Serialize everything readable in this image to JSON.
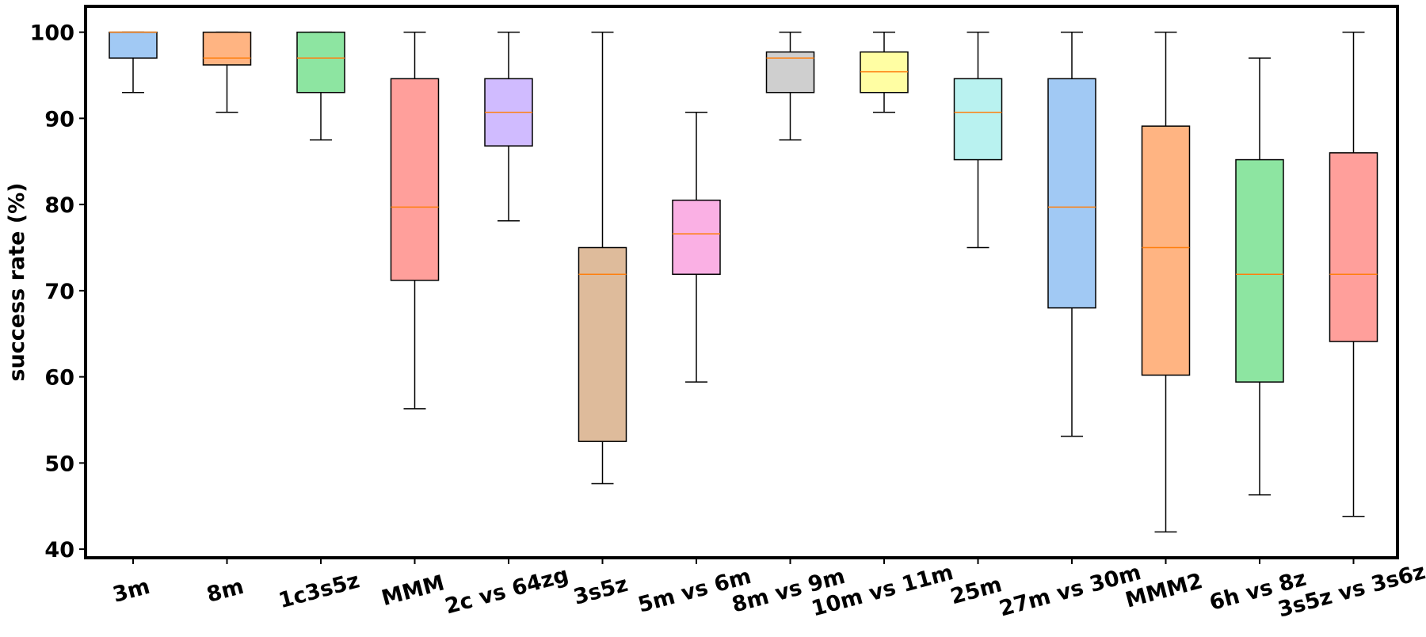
{
  "chart_data": {
    "type": "boxplot",
    "title": "",
    "xlabel": "",
    "ylabel": "success rate (%)",
    "ylim": [
      39,
      103
    ],
    "yticks": [
      40,
      50,
      60,
      70,
      80,
      90,
      100
    ],
    "grid": false,
    "categories": [
      "3m",
      "8m",
      "1c3s5z",
      "MMM",
      "2c vs 64zg",
      "3s5z",
      "5m vs 6m",
      "8m vs 9m",
      "10m vs 11m",
      "25m",
      "27m vs 30m",
      "MMM2",
      "6h vs 8z",
      "3s5z vs 3s6z"
    ],
    "series": [
      {
        "name": "3m",
        "whisker_low": 93.0,
        "q1": 97.0,
        "median": 100.0,
        "q3": 100.0,
        "whisker_high": 100.0,
        "color": "#a1c9f4"
      },
      {
        "name": "8m",
        "whisker_low": 90.7,
        "q1": 96.2,
        "median": 97.0,
        "q3": 100.0,
        "whisker_high": 100.0,
        "color": "#ffb482"
      },
      {
        "name": "1c3s5z",
        "whisker_low": 87.5,
        "q1": 93.0,
        "median": 97.0,
        "q3": 100.0,
        "whisker_high": 100.0,
        "color": "#8de5a1"
      },
      {
        "name": "MMM",
        "whisker_low": 56.3,
        "q1": 71.2,
        "median": 79.7,
        "q3": 94.6,
        "whisker_high": 100.0,
        "color": "#ff9f9b"
      },
      {
        "name": "2c vs 64zg",
        "whisker_low": 78.1,
        "q1": 86.8,
        "median": 90.7,
        "q3": 94.6,
        "whisker_high": 100.0,
        "color": "#d0bbff"
      },
      {
        "name": "3s5z",
        "whisker_low": 47.6,
        "q1": 52.5,
        "median": 71.9,
        "q3": 75.0,
        "whisker_high": 100.0,
        "color": "#debb9b"
      },
      {
        "name": "5m vs 6m",
        "whisker_low": 59.4,
        "q1": 71.9,
        "median": 76.6,
        "q3": 80.5,
        "whisker_high": 90.7,
        "color": "#fab0e4"
      },
      {
        "name": "8m vs 9m",
        "whisker_low": 87.5,
        "q1": 93.0,
        "median": 97.0,
        "q3": 97.7,
        "whisker_high": 100.0,
        "color": "#cfcfcf"
      },
      {
        "name": "10m vs 11m",
        "whisker_low": 90.7,
        "q1": 93.0,
        "median": 95.4,
        "q3": 97.7,
        "whisker_high": 100.0,
        "color": "#fffea3"
      },
      {
        "name": "25m",
        "whisker_low": 75.0,
        "q1": 85.2,
        "median": 90.7,
        "q3": 94.6,
        "whisker_high": 100.0,
        "color": "#b9f2f0"
      },
      {
        "name": "27m vs 30m",
        "whisker_low": 53.1,
        "q1": 68.0,
        "median": 79.7,
        "q3": 94.6,
        "whisker_high": 100.0,
        "color": "#a1c9f4"
      },
      {
        "name": "MMM2",
        "whisker_low": 42.0,
        "q1": 60.2,
        "median": 75.0,
        "q3": 89.1,
        "whisker_high": 100.0,
        "color": "#ffb482"
      },
      {
        "name": "6h vs 8z",
        "whisker_low": 46.3,
        "q1": 59.4,
        "median": 71.9,
        "q3": 85.2,
        "whisker_high": 97.0,
        "color": "#8de5a1"
      },
      {
        "name": "3s5z vs 3s6z",
        "whisker_low": 43.8,
        "q1": 64.1,
        "median": 71.9,
        "q3": 86.0,
        "whisker_high": 100.0,
        "color": "#ff9f9b"
      }
    ],
    "median_color": "#ff7f0e",
    "box_edge_color": "#000000",
    "x_tick_rotation_deg": 15
  }
}
